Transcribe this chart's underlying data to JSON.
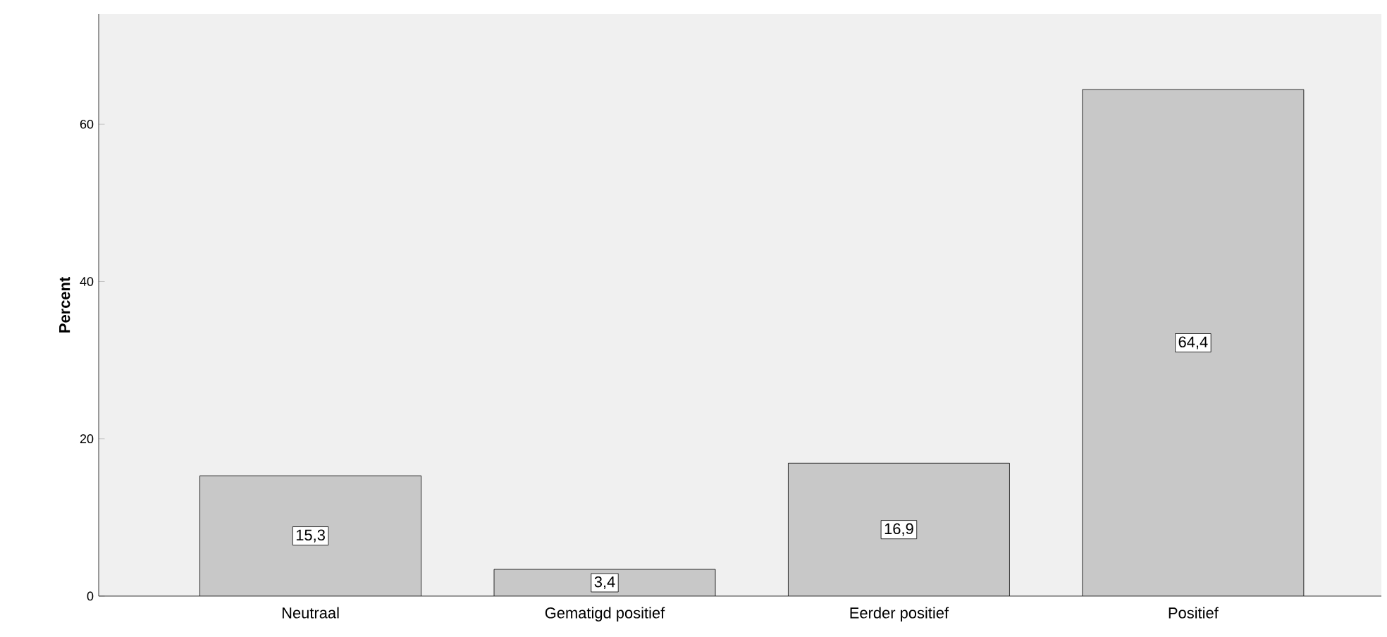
{
  "chart_data": {
    "type": "bar",
    "ylabel": "Percent",
    "categories": [
      "Neutraal",
      "Gematigd positief",
      "Eerder positief",
      "Positief"
    ],
    "values": [
      15.3,
      3.4,
      16.9,
      64.4
    ],
    "value_labels": [
      "15,3",
      "3,4",
      "16,9",
      "64,4"
    ],
    "color": "#c8c8c8",
    "ylim": [
      0,
      74
    ],
    "yticks": [
      0,
      20,
      40,
      60
    ],
    "grid": false
  }
}
